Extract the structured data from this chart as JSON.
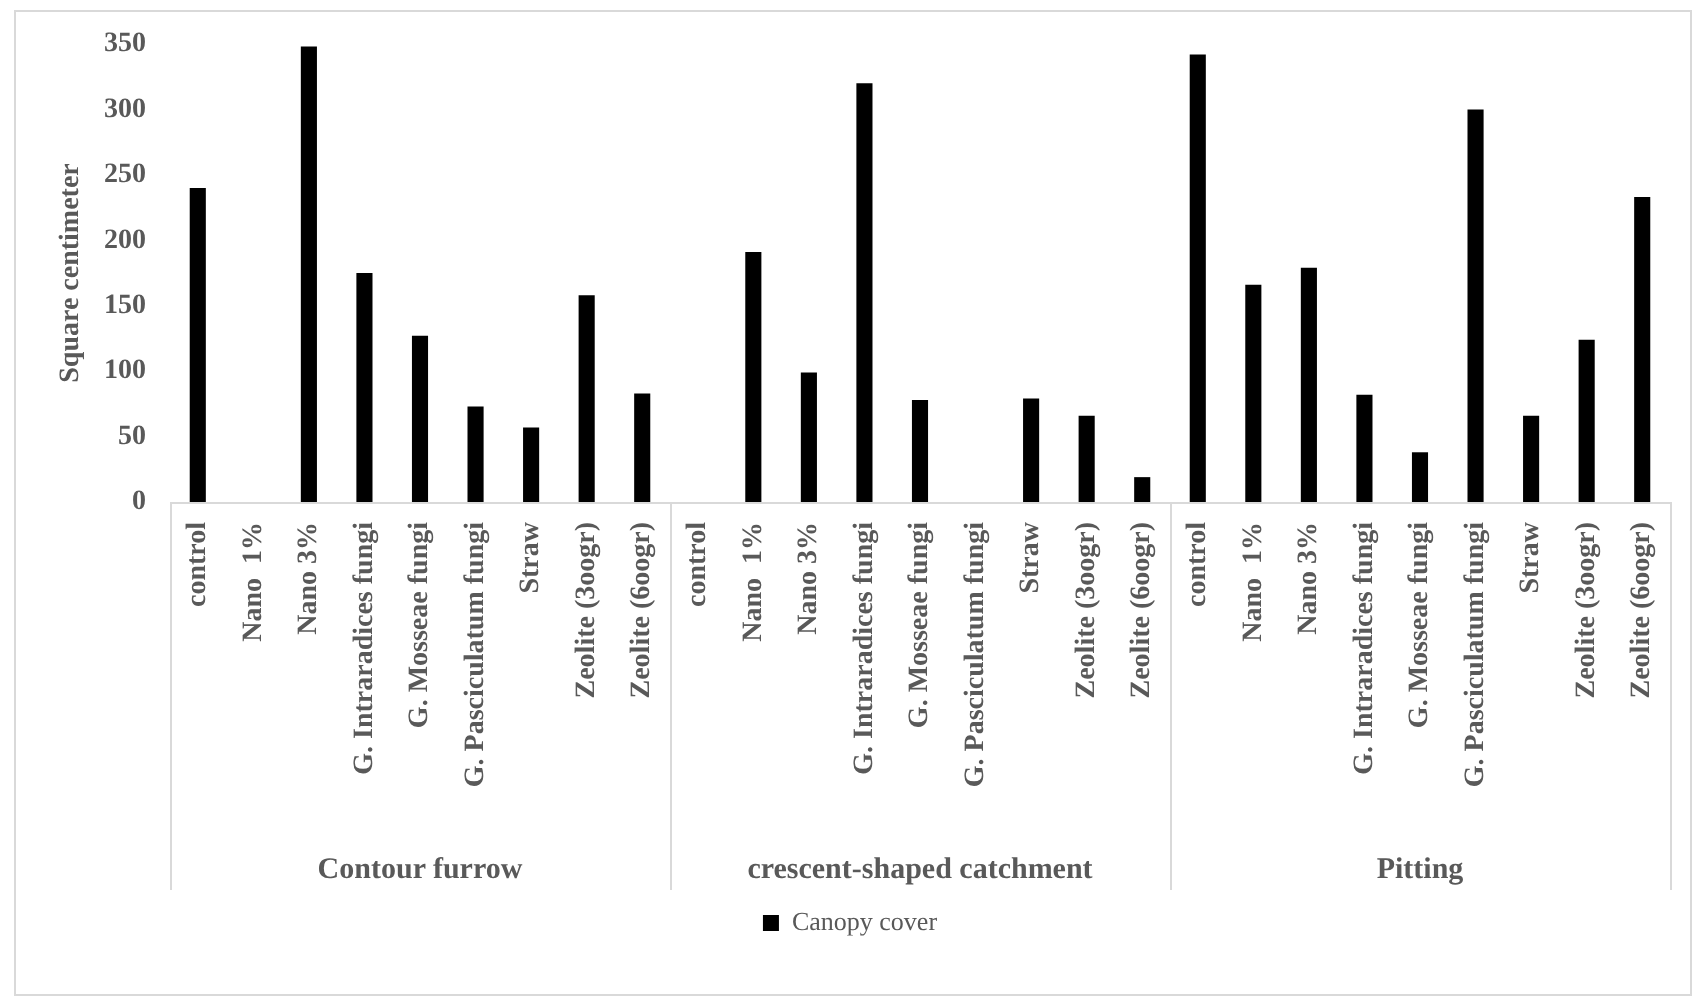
{
  "chart_data": {
    "type": "bar",
    "ylabel": "Square centimeter",
    "categories": [
      "control",
      "Nano  1%",
      "Nano 3%",
      "G. Intraradices fungi",
      "G. Mosseae fungi",
      "G. Pasciculatum fungi",
      "Straw",
      "Zeolite (3oogr)",
      "Zeolite (6oogr)",
      "control",
      "Nano  1%",
      "Nano 3%",
      "G. Intraradices fungi",
      "G. Mosseae fungi",
      "G. Pasciculatum fungi",
      "Straw",
      "Zeolite (3oogr)",
      "Zeolite (6oogr)",
      "control",
      "Nano  1%",
      "Nano 3%",
      "G. Intraradices fungi",
      "G. Mosseae fungi",
      "G. Pasciculatum fungi",
      "Straw",
      "Zeolite (3oogr)",
      "Zeolite (6oogr)"
    ],
    "series": [
      {
        "name": "Canopy cover",
        "color": "#000000",
        "values": [
          240,
          null,
          348,
          175,
          127,
          73,
          57,
          158,
          83,
          null,
          191,
          99,
          320,
          78,
          null,
          79,
          66,
          19,
          342,
          166,
          179,
          82,
          38,
          300,
          66,
          124,
          233
        ]
      }
    ],
    "ylim": [
      0,
      350
    ],
    "yticks": [
      0,
      50,
      100,
      150,
      200,
      250,
      300,
      350
    ],
    "legend": "bottom",
    "annotations": [
      "Contour furrow",
      "crescent-shaped catchment",
      "Pitting"
    ]
  }
}
